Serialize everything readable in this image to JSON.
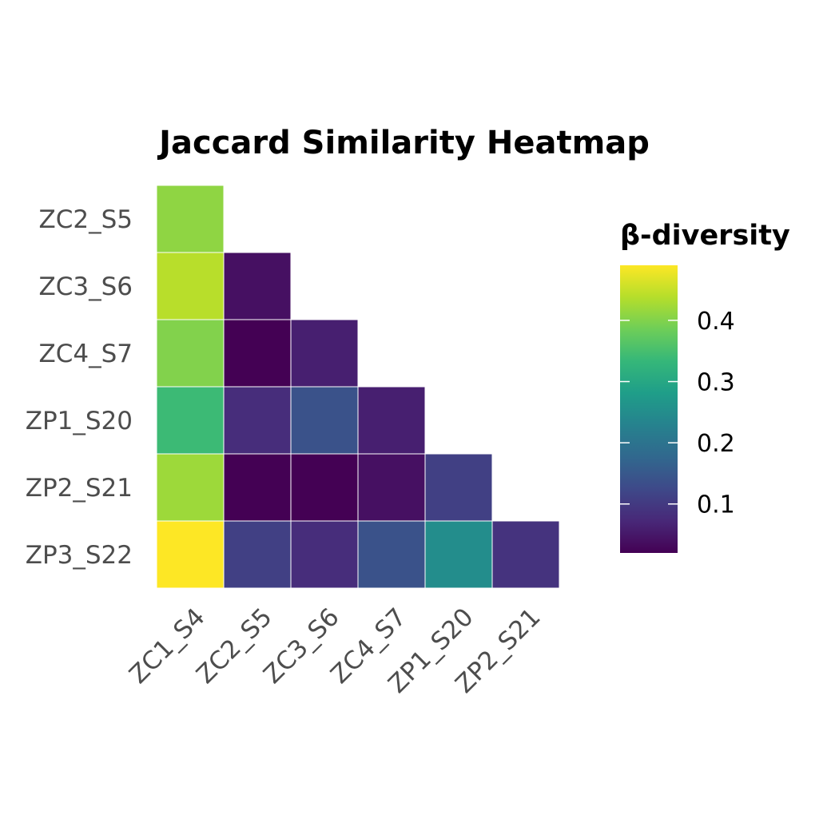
{
  "chart_data": {
    "type": "heatmap",
    "title": "Jaccard Similarity Heatmap",
    "xlabel": "",
    "ylabel": "",
    "x_categories": [
      "ZC1_S4",
      "ZC2_S5",
      "ZC3_S6",
      "ZC4_S7",
      "ZP1_S20",
      "ZP2_S21"
    ],
    "y_categories": [
      "ZC2_S5",
      "ZC3_S6",
      "ZC4_S7",
      "ZP1_S20",
      "ZP2_S21",
      "ZP3_S22"
    ],
    "cells": [
      {
        "x": "ZC1_S4",
        "y": "ZC2_S5",
        "value": 0.41
      },
      {
        "x": "ZC1_S4",
        "y": "ZC3_S6",
        "value": 0.44
      },
      {
        "x": "ZC1_S4",
        "y": "ZC4_S7",
        "value": 0.4
      },
      {
        "x": "ZC1_S4",
        "y": "ZP1_S20",
        "value": 0.34
      },
      {
        "x": "ZC1_S4",
        "y": "ZP2_S21",
        "value": 0.42
      },
      {
        "x": "ZC1_S4",
        "y": "ZP3_S22",
        "value": 0.49
      },
      {
        "x": "ZC2_S5",
        "y": "ZC3_S6",
        "value": 0.04
      },
      {
        "x": "ZC2_S5",
        "y": "ZC4_S7",
        "value": 0.02
      },
      {
        "x": "ZC2_S5",
        "y": "ZP1_S20",
        "value": 0.08
      },
      {
        "x": "ZC2_S5",
        "y": "ZP2_S21",
        "value": 0.02
      },
      {
        "x": "ZC2_S5",
        "y": "ZP3_S22",
        "value": 0.11
      },
      {
        "x": "ZC3_S6",
        "y": "ZC4_S7",
        "value": 0.06
      },
      {
        "x": "ZC3_S6",
        "y": "ZP1_S20",
        "value": 0.14
      },
      {
        "x": "ZC3_S6",
        "y": "ZP2_S21",
        "value": 0.02
      },
      {
        "x": "ZC3_S6",
        "y": "ZP3_S22",
        "value": 0.08
      },
      {
        "x": "ZC4_S7",
        "y": "ZP1_S20",
        "value": 0.06
      },
      {
        "x": "ZC4_S7",
        "y": "ZP2_S21",
        "value": 0.04
      },
      {
        "x": "ZC4_S7",
        "y": "ZP3_S22",
        "value": 0.14
      },
      {
        "x": "ZP1_S20",
        "y": "ZP2_S21",
        "value": 0.11
      },
      {
        "x": "ZP1_S20",
        "y": "ZP3_S22",
        "value": 0.25
      },
      {
        "x": "ZP2_S21",
        "y": "ZP3_S22",
        "value": 0.09
      }
    ],
    "colorscale": "viridis",
    "value_range": [
      0.02,
      0.49
    ],
    "legend": {
      "title": "β-diversity",
      "ticks": [
        0.1,
        0.2,
        0.3,
        0.4
      ],
      "tick_labels": [
        "0.1",
        "0.2",
        "0.3",
        "0.4"
      ],
      "placement": "right"
    },
    "grid": false
  }
}
